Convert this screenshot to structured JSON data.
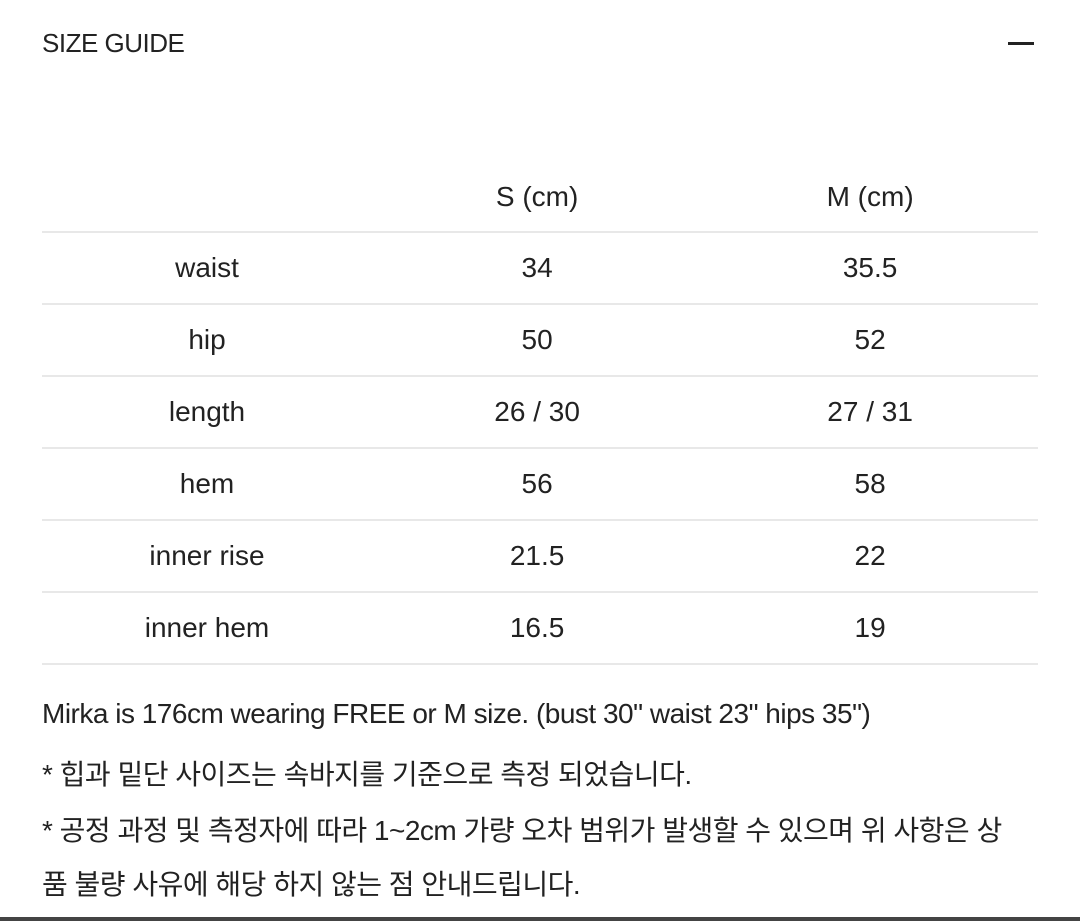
{
  "header": {
    "title": "SIZE GUIDE",
    "collapse_icon": "minus-icon"
  },
  "table": {
    "columns": [
      "",
      "S (cm)",
      "M (cm)"
    ],
    "rows": [
      [
        "waist",
        "34",
        "35.5"
      ],
      [
        "hip",
        "50",
        "52"
      ],
      [
        "length",
        "26 / 30",
        "27 / 31"
      ],
      [
        "hem",
        "56",
        "58"
      ],
      [
        "inner rise",
        "21.5",
        "22"
      ],
      [
        "inner hem",
        "16.5",
        "19"
      ]
    ]
  },
  "notes": [
    "Mirka is 176cm wearing FREE or M size. (bust 30\" waist 23\" hips 35\")",
    "* 힙과 밑단 사이즈는 속바지를 기준으로 측정 되었습니다.",
    "* 공정 과정 및 측정자에 따라 1~2cm 가량 오차 범위가 발생할 수 있으며 위 사항은 상",
    "품 불량 사유에 해당 하지 않는 점 안내드립니다."
  ]
}
